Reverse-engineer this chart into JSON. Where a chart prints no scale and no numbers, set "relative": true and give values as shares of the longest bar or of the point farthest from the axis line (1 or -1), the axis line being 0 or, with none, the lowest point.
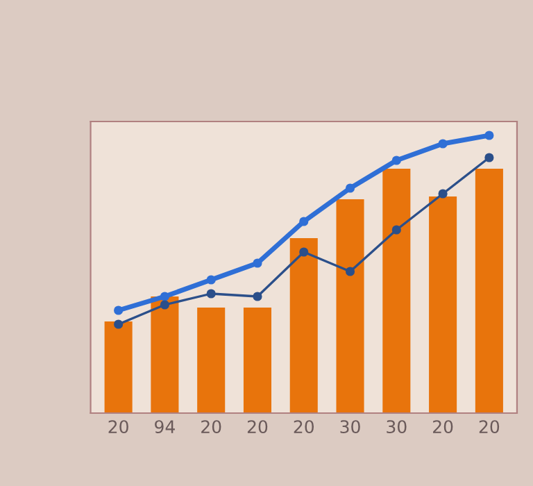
{
  "chart_data": {
    "type": "bar",
    "relative": true,
    "categories": [
      "20",
      "94",
      "20",
      "20",
      "20",
      "30",
      "30",
      "20",
      "20"
    ],
    "series": [
      {
        "color": "#e8740c",
        "values": [
          0.33,
          0.42,
          0.38,
          0.38,
          0.63,
          0.77,
          0.88,
          0.78,
          0.88
        ]
      },
      {
        "type": "line",
        "color": "#2f6fd6",
        "values": [
          0.37,
          0.42,
          0.48,
          0.54,
          0.69,
          0.81,
          0.91,
          0.97,
          1.0
        ]
      },
      {
        "type": "line",
        "color": "#2b4f8a",
        "values": [
          0.32,
          0.39,
          0.43,
          0.42,
          0.58,
          0.51,
          0.66,
          0.79,
          0.92
        ]
      }
    ],
    "marker": "circle",
    "line_style": "solid",
    "grid": false,
    "legend": false
  }
}
